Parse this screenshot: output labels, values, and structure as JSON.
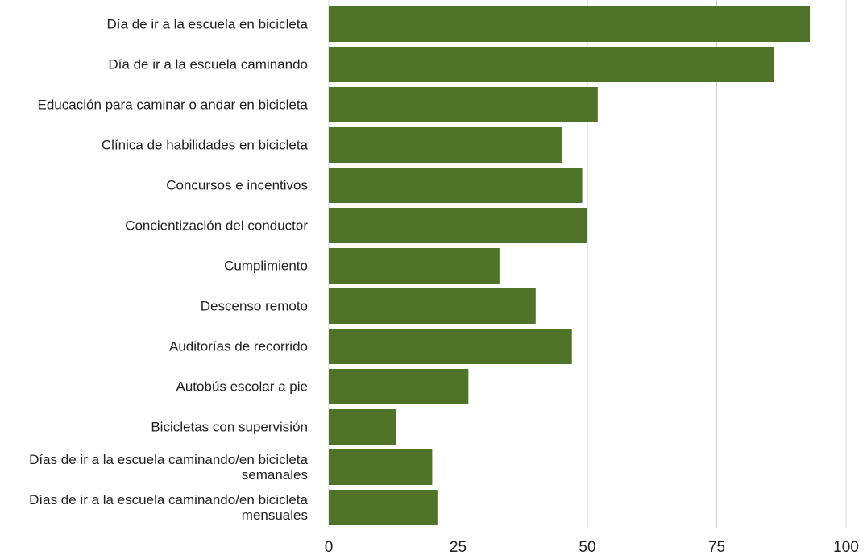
{
  "chart_data": {
    "type": "bar",
    "orientation": "horizontal",
    "categories": [
      "Día de ir a la escuela en bicicleta",
      "Día de ir a la escuela caminando",
      "Educación para caminar o andar en bicicleta",
      "Clínica de habilidades en bicicleta",
      "Concursos e incentivos",
      "Concientización del conductor",
      "Cumplimiento",
      "Descenso remoto",
      "Auditorías de recorrido",
      "Autobús escolar a pie",
      "Bicicletas con supervisión",
      "Días de ir a la escuela caminando/en bicicleta semanales",
      "Días de ir a la escuela caminando/en bicicleta mensuales"
    ],
    "values": [
      93,
      86,
      52,
      45,
      49,
      50,
      33,
      40,
      47,
      27,
      13,
      20,
      21
    ],
    "color": "#4e7329",
    "xlim": [
      0,
      100
    ],
    "xticks": [
      0,
      25,
      50,
      75,
      100
    ],
    "grid": true
  }
}
